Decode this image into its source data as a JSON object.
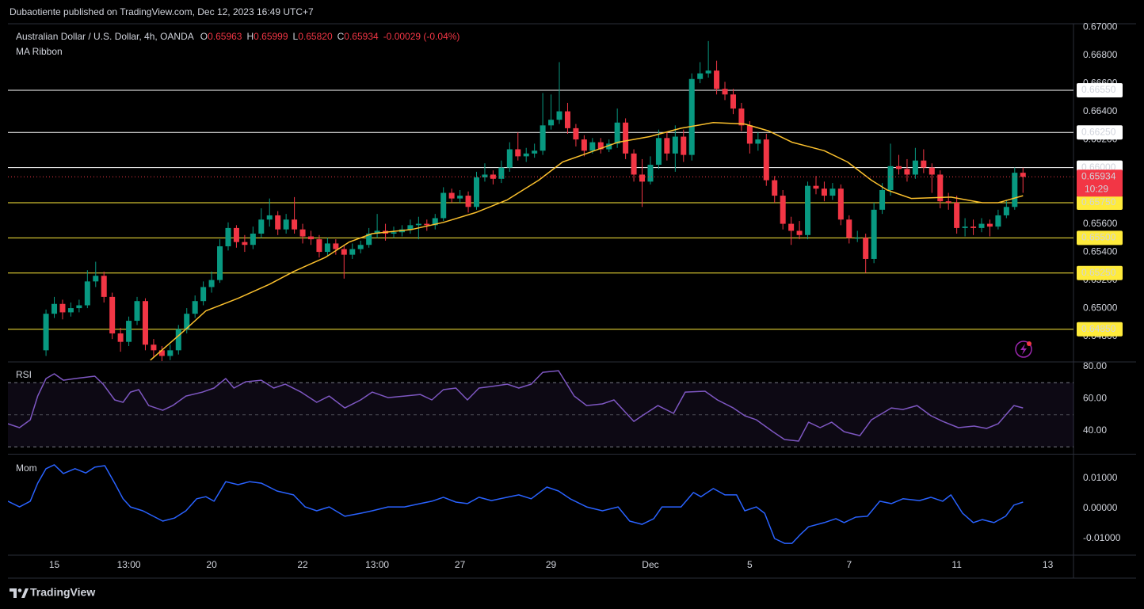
{
  "header": {
    "text": "Dubaotiente published on TradingView.com, Dec 12, 2023 16:49 UTC+7"
  },
  "footer": {
    "logo_text": "TradingView"
  },
  "chart_data": [
    {
      "type": "candlestick",
      "title": "Australian Dollar / U.S. Dollar, 4h, OANDA",
      "ohlc_legend": [
        {
          "key": "O",
          "value": "0.65963"
        },
        {
          "key": "H",
          "value": "0.65999"
        },
        {
          "key": "L",
          "value": "0.65820"
        },
        {
          "key": "C",
          "value": "0.65934"
        }
      ],
      "change": "-0.00029 (-0.04%)",
      "up_color": "#089981",
      "down_color": "#f23645",
      "xlim": [
        -4.6,
        124.1
      ],
      "xticks": [
        {
          "value": 1,
          "label": "15"
        },
        {
          "value": 10,
          "label": "13:00"
        },
        {
          "value": 20,
          "label": "20"
        },
        {
          "value": 31,
          "label": "22"
        },
        {
          "value": 40,
          "label": "13:00"
        },
        {
          "value": 50,
          "label": "27"
        },
        {
          "value": 61,
          "label": "29"
        },
        {
          "value": 73,
          "label": "Dec"
        },
        {
          "value": 85,
          "label": "5"
        },
        {
          "value": 97,
          "label": "7"
        },
        {
          "value": 110,
          "label": "11"
        },
        {
          "value": 121,
          "label": "13"
        }
      ],
      "ylim": [
        0.64623,
        0.67023
      ],
      "yticks": [
        {
          "value": 0.67,
          "label": "0.67000"
        },
        {
          "value": 0.668,
          "label": "0.66800"
        },
        {
          "value": 0.666,
          "label": "0.66600"
        },
        {
          "value": 0.664,
          "label": "0.66400"
        },
        {
          "value": 0.662,
          "label": "0.66200"
        },
        {
          "value": 0.66,
          "label": "0.66000"
        },
        {
          "value": 0.658,
          "label": "0.65800"
        },
        {
          "value": 0.656,
          "label": "0.65600"
        },
        {
          "value": 0.654,
          "label": "0.65400"
        },
        {
          "value": 0.652,
          "label": "0.65200"
        },
        {
          "value": 0.65,
          "label": "0.65000"
        },
        {
          "value": 0.648,
          "label": "0.64800"
        }
      ],
      "grid": false,
      "open": [
        0.647,
        0.6496,
        0.6503,
        0.6497,
        0.65,
        0.6502,
        0.6519,
        0.6523,
        0.6508,
        0.6482,
        0.6476,
        0.6491,
        0.6505,
        0.6474,
        0.647,
        0.6466,
        0.647,
        0.6485,
        0.6496,
        0.6505,
        0.6515,
        0.652,
        0.6544,
        0.6557,
        0.6547,
        0.6545,
        0.6553,
        0.6563,
        0.6566,
        0.6556,
        0.6563,
        0.6556,
        0.6551,
        0.6549,
        0.654,
        0.6546,
        0.6542,
        0.6538,
        0.6542,
        0.6545,
        0.6553,
        0.6555,
        0.6553,
        0.6554,
        0.6556,
        0.6559,
        0.656,
        0.6559,
        0.6564,
        0.6582,
        0.6578,
        0.658,
        0.6572,
        0.6593,
        0.6595,
        0.6592,
        0.66,
        0.6613,
        0.6608,
        0.661,
        0.6612,
        0.663,
        0.6634,
        0.664,
        0.6628,
        0.662,
        0.6612,
        0.6618,
        0.6613,
        0.6617,
        0.6632,
        0.661,
        0.6595,
        0.659,
        0.6602,
        0.6621,
        0.661,
        0.6622,
        0.6609,
        0.6663,
        0.6667,
        0.6669,
        0.6656,
        0.6652,
        0.6642,
        0.663,
        0.6617,
        0.662,
        0.6591,
        0.658,
        0.656,
        0.6555,
        0.6552,
        0.6587,
        0.6585,
        0.658,
        0.6585,
        0.6563,
        0.655,
        0.655,
        0.6535,
        0.657,
        0.6584,
        0.6601,
        0.6599,
        0.6595,
        0.6605,
        0.66,
        0.6595,
        0.6576,
        0.6575,
        0.6557,
        0.6558,
        0.6557,
        0.656,
        0.6558,
        0.6566,
        0.6572,
        0.65963
      ],
      "high": [
        0.6499,
        0.6508,
        0.6506,
        0.6504,
        0.6506,
        0.6527,
        0.6533,
        0.6526,
        0.6511,
        0.6486,
        0.6494,
        0.6508,
        0.6507,
        0.6478,
        0.6473,
        0.6474,
        0.6488,
        0.65,
        0.6509,
        0.6519,
        0.6526,
        0.6549,
        0.6561,
        0.6559,
        0.6552,
        0.6558,
        0.6571,
        0.6578,
        0.6569,
        0.6567,
        0.6579,
        0.656,
        0.6555,
        0.6552,
        0.655,
        0.6549,
        0.6545,
        0.6546,
        0.6548,
        0.6557,
        0.6567,
        0.656,
        0.6558,
        0.6559,
        0.6563,
        0.6565,
        0.6563,
        0.6567,
        0.6586,
        0.6585,
        0.6584,
        0.6583,
        0.6597,
        0.6603,
        0.6598,
        0.6605,
        0.6618,
        0.6625,
        0.6614,
        0.6617,
        0.6653,
        0.6652,
        0.6675,
        0.6646,
        0.6631,
        0.6623,
        0.6621,
        0.6621,
        0.662,
        0.6642,
        0.6635,
        0.6613,
        0.6606,
        0.6608,
        0.6627,
        0.6625,
        0.663,
        0.6627,
        0.6667,
        0.6675,
        0.669,
        0.6676,
        0.6661,
        0.6656,
        0.6646,
        0.6633,
        0.6625,
        0.6624,
        0.6594,
        0.6584,
        0.6565,
        0.6562,
        0.659,
        0.6594,
        0.659,
        0.6589,
        0.6588,
        0.6566,
        0.6555,
        0.6553,
        0.6575,
        0.6589,
        0.6617,
        0.6609,
        0.6606,
        0.6614,
        0.6613,
        0.6603,
        0.6598,
        0.6582,
        0.658,
        0.6564,
        0.6563,
        0.6564,
        0.6563,
        0.657,
        0.6577,
        0.66,
        0.65999
      ],
      "low": [
        0.6466,
        0.6493,
        0.6492,
        0.6494,
        0.6497,
        0.65,
        0.6515,
        0.6504,
        0.6478,
        0.6469,
        0.6473,
        0.6488,
        0.647,
        0.6465,
        0.6462,
        0.6463,
        0.6467,
        0.6482,
        0.6493,
        0.6502,
        0.6511,
        0.6518,
        0.6541,
        0.6543,
        0.654,
        0.6542,
        0.655,
        0.6558,
        0.6552,
        0.6553,
        0.6553,
        0.6546,
        0.6545,
        0.6536,
        0.6537,
        0.6538,
        0.6521,
        0.6535,
        0.6539,
        0.6543,
        0.655,
        0.6548,
        0.655,
        0.6551,
        0.6553,
        0.6549,
        0.6555,
        0.6556,
        0.6562,
        0.6575,
        0.6575,
        0.6568,
        0.657,
        0.659,
        0.6588,
        0.6589,
        0.6597,
        0.6605,
        0.6604,
        0.6607,
        0.6609,
        0.6627,
        0.6631,
        0.6624,
        0.6615,
        0.6608,
        0.661,
        0.661,
        0.6611,
        0.6614,
        0.6606,
        0.659,
        0.6572,
        0.6588,
        0.6599,
        0.6605,
        0.6597,
        0.6604,
        0.6605,
        0.666,
        0.6664,
        0.6652,
        0.6648,
        0.6638,
        0.6626,
        0.661,
        0.6612,
        0.6587,
        0.6575,
        0.6556,
        0.6545,
        0.6549,
        0.6549,
        0.6581,
        0.6576,
        0.6577,
        0.6559,
        0.6546,
        0.6547,
        0.6525,
        0.6532,
        0.6567,
        0.658,
        0.6595,
        0.659,
        0.6592,
        0.6596,
        0.6582,
        0.6571,
        0.657,
        0.6553,
        0.6551,
        0.6552,
        0.6554,
        0.6551,
        0.6556,
        0.6564,
        0.657,
        0.6582
      ],
      "close": [
        0.6496,
        0.6503,
        0.6497,
        0.65,
        0.6502,
        0.6519,
        0.6523,
        0.6508,
        0.6482,
        0.6476,
        0.6491,
        0.6505,
        0.6474,
        0.647,
        0.6466,
        0.647,
        0.6485,
        0.6496,
        0.6505,
        0.6515,
        0.652,
        0.6544,
        0.6557,
        0.6547,
        0.6545,
        0.6553,
        0.6563,
        0.6566,
        0.6556,
        0.6563,
        0.6556,
        0.6551,
        0.6549,
        0.654,
        0.6546,
        0.6542,
        0.6538,
        0.6542,
        0.6545,
        0.6553,
        0.6555,
        0.6553,
        0.6554,
        0.6556,
        0.6559,
        0.656,
        0.6559,
        0.6564,
        0.6582,
        0.6578,
        0.658,
        0.6572,
        0.6593,
        0.6595,
        0.6592,
        0.66,
        0.6613,
        0.6608,
        0.661,
        0.6612,
        0.663,
        0.6634,
        0.664,
        0.6628,
        0.662,
        0.6612,
        0.6618,
        0.6613,
        0.6617,
        0.6632,
        0.661,
        0.6595,
        0.659,
        0.6602,
        0.6621,
        0.661,
        0.6622,
        0.6609,
        0.6663,
        0.6667,
        0.6669,
        0.6656,
        0.6652,
        0.6642,
        0.663,
        0.6617,
        0.662,
        0.6591,
        0.658,
        0.656,
        0.6555,
        0.6552,
        0.6587,
        0.6585,
        0.658,
        0.6585,
        0.6563,
        0.655,
        0.655,
        0.6535,
        0.657,
        0.6584,
        0.6601,
        0.6599,
        0.6595,
        0.6605,
        0.66,
        0.6595,
        0.6576,
        0.6575,
        0.6557,
        0.6558,
        0.6557,
        0.656,
        0.6558,
        0.6566,
        0.6572,
        0.65963,
        0.65934
      ],
      "ma": {
        "name": "MA Ribbon",
        "color": "#fbc02d",
        "x": [
          12.6,
          16.5,
          19.3,
          23.2,
          27.0,
          29.9,
          33.7,
          36.6,
          39.4,
          44.2,
          48.0,
          51.9,
          55.7,
          59.5,
          62.4,
          65.3,
          69.1,
          72.9,
          76.7,
          80.6,
          84.4,
          87.3,
          90.1,
          94.0,
          96.8,
          99.7,
          101.6,
          104.5,
          109.3,
          113.1,
          115.0,
          118.0
        ],
        "values": [
          0.6463,
          0.6483,
          0.6498,
          0.6507,
          0.6517,
          0.6526,
          0.6536,
          0.6547,
          0.6553,
          0.6556,
          0.6561,
          0.6568,
          0.6577,
          0.6591,
          0.6604,
          0.661,
          0.6618,
          0.6622,
          0.6628,
          0.6632,
          0.6631,
          0.6626,
          0.6618,
          0.6612,
          0.6604,
          0.6591,
          0.6584,
          0.6578,
          0.6579,
          0.6575,
          0.6575,
          0.658
        ]
      },
      "levels": [
        {
          "value": 0.6655,
          "label": "0.66550",
          "color": "#ffffff"
        },
        {
          "value": 0.6625,
          "label": "0.66250",
          "color": "#ffffff"
        },
        {
          "value": 0.66,
          "label": "0.66000",
          "color": "#ffffff"
        },
        {
          "value": 0.6575,
          "label": "0.65750",
          "color": "#ffeb3b"
        },
        {
          "value": 0.655,
          "label": "0.65500",
          "color": "#ffeb3b"
        },
        {
          "value": 0.6525,
          "label": "0.65250",
          "color": "#ffeb3b"
        },
        {
          "value": 0.6485,
          "label": "0.64850",
          "color": "#ffeb3b"
        }
      ],
      "last_price": {
        "value": 0.65934,
        "label": "0.65934",
        "countdown": "10:29",
        "color": "#f23645"
      }
    },
    {
      "type": "line",
      "title": "RSI",
      "color": "#7e57c2",
      "ylim": [
        26.2,
        82.5
      ],
      "yticks": [
        {
          "value": 80,
          "label": "80.00"
        },
        {
          "value": 60,
          "label": "60.00"
        },
        {
          "value": 40,
          "label": "40.00"
        }
      ],
      "band": [
        30,
        70
      ],
      "midline": 50,
      "x": [
        -4.6,
        -3.2,
        -1.9,
        -1.0,
        0,
        1.0,
        2.1,
        3.5,
        5.9,
        6.9,
        8.3,
        9.3,
        10.2,
        11.2,
        12.4,
        14.1,
        15.3,
        16.9,
        18.9,
        20.3,
        21.7,
        22.7,
        24.1,
        26.0,
        27.5,
        28.9,
        30.8,
        32.7,
        34.2,
        36.1,
        38.0,
        39.4,
        41.3,
        43.3,
        45.2,
        46.6,
        48.0,
        49.5,
        50.9,
        52.3,
        53.8,
        55.7,
        57.1,
        58.6,
        60.0,
        61.9,
        63.8,
        65.3,
        67.2,
        68.6,
        71.0,
        72.0,
        73.9,
        75.8,
        77.2,
        79.6,
        81.1,
        83.0,
        84.4,
        85.8,
        87.8,
        89.2,
        90.9,
        92.1,
        93.5,
        94.9,
        96.4,
        98.3,
        99.7,
        102.1,
        103.5,
        105.2,
        106.9,
        108.3,
        110.2,
        112.1,
        113.6,
        115.0,
        116.9,
        118.0
      ],
      "values": [
        44.4,
        42.0,
        46.9,
        61.7,
        72.6,
        75.6,
        71.6,
        72.6,
        74.1,
        69.1,
        59.3,
        57.8,
        64.2,
        65.7,
        55.8,
        52.8,
        55.8,
        61.7,
        64.2,
        66.7,
        72.6,
        66.7,
        70.6,
        71.6,
        66.7,
        69.1,
        64.2,
        57.8,
        61.7,
        54.3,
        59.3,
        64.2,
        60.7,
        61.7,
        62.7,
        59.3,
        65.7,
        66.7,
        59.3,
        66.7,
        67.7,
        69.1,
        66.7,
        69.1,
        76.5,
        77.5,
        61.7,
        55.8,
        56.8,
        59.3,
        45.9,
        49.4,
        55.8,
        50.9,
        64.2,
        64.7,
        59.3,
        54.3,
        49.4,
        46.9,
        39.5,
        34.6,
        33.6,
        45.4,
        42.0,
        45.4,
        39.5,
        37.0,
        46.9,
        54.3,
        53.3,
        55.8,
        49.4,
        45.9,
        42.0,
        43.0,
        41.5,
        44.4,
        55.8,
        54.3
      ]
    },
    {
      "type": "line",
      "title": "Mom",
      "color": "#2962ff",
      "ylim": [
        -0.01526,
        0.01763
      ],
      "yticks": [
        {
          "value": 0.01,
          "label": "0.01000"
        },
        {
          "value": 0,
          "label": "0.00000"
        },
        {
          "value": -0.01,
          "label": "-0.01000"
        }
      ],
      "x": [
        -4.6,
        -3.2,
        -1.9,
        -1.0,
        0,
        1.0,
        2.1,
        3.5,
        4.8,
        5.9,
        7.1,
        8.3,
        9.3,
        10.2,
        11.7,
        14.1,
        15.5,
        16.9,
        18.2,
        19.3,
        20.3,
        21.7,
        23.2,
        24.6,
        26.0,
        27.9,
        29.9,
        31.3,
        32.7,
        34.2,
        36.1,
        38.0,
        39.4,
        41.3,
        43.3,
        45.2,
        46.6,
        48.0,
        49.5,
        50.9,
        52.3,
        53.8,
        55.7,
        57.1,
        58.6,
        60.5,
        61.9,
        63.3,
        65.3,
        67.2,
        69.1,
        70.5,
        72.0,
        73.4,
        74.4,
        76.7,
        78.2,
        79.1,
        80.6,
        82.0,
        83.4,
        84.4,
        85.8,
        86.8,
        88.0,
        89.2,
        90.1,
        91.1,
        92.1,
        94.0,
        95.4,
        96.4,
        97.8,
        99.2,
        100.7,
        102.1,
        103.5,
        105.5,
        106.9,
        108.3,
        109.3,
        110.7,
        112.0,
        113.1,
        114.5,
        115.9,
        116.9,
        118.0
      ],
      "values": [
        0.0024,
        0.0005,
        0.0024,
        0.0084,
        0.0132,
        0.0145,
        0.0116,
        0.0132,
        0.0118,
        0.0137,
        0.0142,
        0.0084,
        0.0032,
        0.0005,
        -0.0008,
        -0.0042,
        -0.0032,
        -0.0008,
        0.0032,
        0.0039,
        0.0024,
        0.0089,
        0.0079,
        0.0089,
        0.0084,
        0.0058,
        0.0045,
        0.0005,
        -0.0008,
        0.0005,
        -0.0026,
        -0.0016,
        -0.0008,
        0.0005,
        0.0005,
        0.0016,
        0.0024,
        0.0037,
        0.0021,
        0.0016,
        0.0037,
        0.0026,
        0.0037,
        0.0045,
        0.0032,
        0.0071,
        0.0058,
        0.0032,
        0.0005,
        -0.0008,
        0.0005,
        -0.0042,
        -0.0053,
        -0.0034,
        0.0005,
        0.0005,
        0.0053,
        0.0039,
        0.0066,
        0.0045,
        0.0045,
        -0.0008,
        0.0005,
        -0.0016,
        -0.01,
        -0.0116,
        -0.0116,
        -0.0087,
        -0.0061,
        -0.0047,
        -0.0034,
        -0.0047,
        -0.0029,
        -0.0026,
        0.0024,
        0.0016,
        0.0032,
        0.0026,
        0.0037,
        0.0024,
        0.0045,
        -0.0016,
        -0.0047,
        -0.0037,
        -0.0047,
        -0.0026,
        0.0011,
        0.0021
      ]
    }
  ]
}
